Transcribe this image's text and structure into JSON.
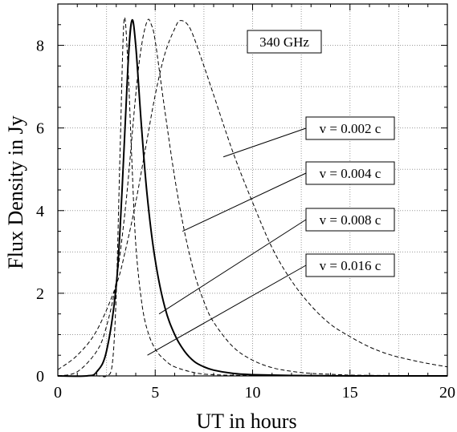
{
  "chart_data": {
    "type": "line",
    "title": "",
    "xlabel": "UT in hours",
    "ylabel": "Flux Density in Jy",
    "xlim": [
      0,
      20
    ],
    "ylim": [
      0,
      9
    ],
    "x_ticks": [
      0,
      5,
      10,
      15,
      20
    ],
    "y_ticks": [
      0,
      2,
      4,
      6,
      8
    ],
    "grid": true,
    "frequency_label": "340 GHz",
    "series": [
      {
        "name": "v = 0.002 c",
        "style": "dashed",
        "x": [
          0,
          1,
          2,
          3,
          3.5,
          4,
          4.5,
          5,
          5.5,
          6,
          6.3,
          6.8,
          7.5,
          8,
          9,
          10,
          11,
          12,
          13,
          14,
          15,
          16,
          17,
          18,
          19,
          20
        ],
        "y": [
          0.15,
          0.5,
          1.1,
          2.2,
          3.1,
          4.2,
          5.5,
          6.8,
          7.8,
          8.4,
          8.6,
          8.4,
          7.5,
          6.8,
          5.4,
          4.2,
          3.1,
          2.3,
          1.7,
          1.25,
          0.95,
          0.7,
          0.52,
          0.4,
          0.3,
          0.22
        ]
      },
      {
        "name": "v = 0.004 c",
        "style": "dashed",
        "x": [
          0,
          1,
          2,
          2.5,
          3,
          3.5,
          4,
          4.3,
          4.6,
          4.8,
          5,
          5.5,
          6,
          6.5,
          7,
          7.5,
          8,
          9,
          10,
          11,
          12,
          13,
          14,
          15,
          17,
          20
        ],
        "y": [
          0.0,
          0.1,
          0.6,
          1.2,
          2.3,
          4.2,
          6.8,
          8.0,
          8.6,
          8.5,
          8.1,
          6.4,
          4.8,
          3.5,
          2.5,
          1.8,
          1.3,
          0.7,
          0.38,
          0.2,
          0.11,
          0.06,
          0.04,
          0.02,
          0.01,
          0.0
        ]
      },
      {
        "name": "v = 0.008 c",
        "style": "solid",
        "x": [
          0,
          1.5,
          2,
          2.5,
          3,
          3.3,
          3.6,
          3.8,
          4.0,
          4.3,
          4.6,
          5,
          5.5,
          6,
          6.5,
          7,
          7.5,
          8,
          9,
          10,
          12,
          15,
          20
        ],
        "y": [
          0.0,
          0.0,
          0.1,
          0.6,
          2.2,
          4.5,
          7.5,
          8.6,
          8.0,
          6.0,
          4.3,
          2.8,
          1.65,
          1.0,
          0.6,
          0.35,
          0.22,
          0.14,
          0.06,
          0.03,
          0.01,
          0.0,
          0.0
        ]
      },
      {
        "name": "v = 0.016 c",
        "style": "dashed",
        "x": [
          0,
          2,
          2.5,
          2.8,
          3.0,
          3.2,
          3.4,
          3.6,
          3.8,
          4.0,
          4.3,
          4.6,
          5,
          5.5,
          6,
          7,
          8,
          10,
          15,
          20
        ],
        "y": [
          0.0,
          0.0,
          0.0,
          0.3,
          2.0,
          5.5,
          8.6,
          7.5,
          5.2,
          3.2,
          1.8,
          1.1,
          0.65,
          0.38,
          0.22,
          0.08,
          0.03,
          0.01,
          0.0,
          0.0
        ]
      }
    ],
    "annotations": [
      {
        "text": "v = 0.002 c",
        "x": 8.5,
        "y": 5.3
      },
      {
        "text": "v = 0.004 c",
        "x": 6.4,
        "y": 3.5
      },
      {
        "text": "v = 0.008 c",
        "x": 5.2,
        "y": 1.5
      },
      {
        "text": "v = 0.016 c",
        "x": 4.6,
        "y": 0.5
      }
    ]
  }
}
